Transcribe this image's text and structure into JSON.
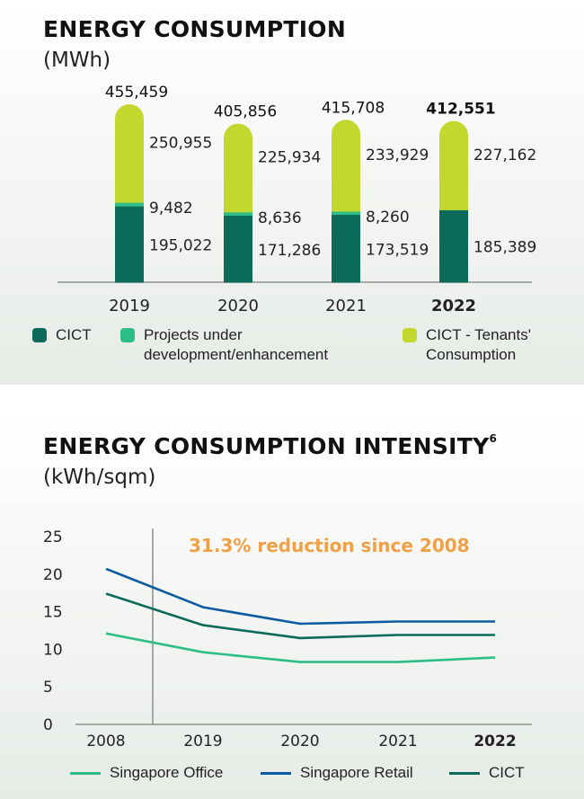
{
  "chart_data": [
    {
      "type": "bar",
      "stacked": true,
      "title": "ENERGY CONSUMPTION",
      "unit": "(MWh)",
      "categories": [
        "2019",
        "2020",
        "2021",
        "2022"
      ],
      "highlight_category": "2022",
      "totals": [
        "455,459",
        "405,856",
        "415,708",
        "412,551"
      ],
      "series": [
        {
          "name": "CICT",
          "color": "#0b6b58",
          "values": [
            195022,
            171286,
            173519,
            185389
          ],
          "labels": [
            "195,022",
            "171,286",
            "173,519",
            "185,389"
          ]
        },
        {
          "name": "Projects under development/enhancement",
          "color": "#2dbd86",
          "values": [
            9482,
            8636,
            8260,
            0
          ],
          "labels": [
            "9,482",
            "8,636",
            "8,260",
            ""
          ]
        },
        {
          "name": "CICT - Tenants' Consumption",
          "color": "#c2d82e",
          "values": [
            250955,
            225934,
            233929,
            227162
          ],
          "labels": [
            "250,955",
            "225,934",
            "233,929",
            "227,162"
          ]
        }
      ],
      "ylim": [
        0,
        455459
      ]
    },
    {
      "type": "line",
      "title": "ENERGY CONSUMPTION INTENSITY",
      "title_sup": "6",
      "unit": "(kWh/sqm)",
      "annotation": "31.3% reduction since 2008",
      "categories": [
        "2008",
        "2019",
        "2020",
        "2021",
        "2022"
      ],
      "highlight_category": "2022",
      "yticks": [
        "0",
        "5",
        "10",
        "15",
        "20",
        "25"
      ],
      "ylim": [
        0,
        25
      ],
      "series": [
        {
          "name": "Singapore Office",
          "color": "#2dbd86",
          "values": [
            12.1,
            9.6,
            8.3,
            8.3,
            8.9
          ]
        },
        {
          "name": "Singapore Retail",
          "color": "#0c5aa0",
          "values": [
            20.7,
            15.6,
            13.4,
            13.7,
            13.7
          ]
        },
        {
          "name": "CICT",
          "color": "#0b6b58",
          "values": [
            17.4,
            13.2,
            11.5,
            11.9,
            11.9
          ]
        }
      ]
    }
  ]
}
